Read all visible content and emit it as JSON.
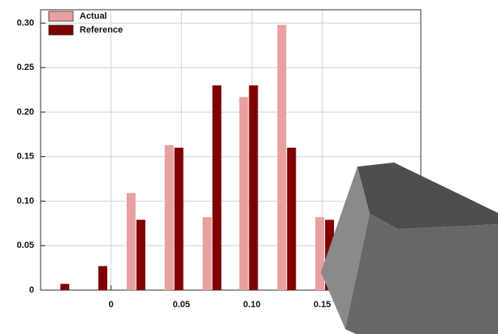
{
  "chart_data": {
    "type": "bar",
    "x": [
      -0.036,
      -0.009,
      0.018,
      0.045,
      0.072,
      0.098,
      0.125,
      0.152
    ],
    "series": [
      {
        "name": "Actual",
        "color": "#e8a0a0",
        "values": [
          0,
          0,
          0.109,
          0.163,
          0.082,
          0.217,
          0.298,
          0.082
        ]
      },
      {
        "name": "Reference",
        "color": "#7f0000",
        "values": [
          0.007,
          0.027,
          0.079,
          0.16,
          0.23,
          0.23,
          0.16,
          0.079
        ]
      }
    ],
    "xlim": [
      -0.05,
      0.22
    ],
    "xticks": [
      0,
      0.05,
      {
        "value": 0.1,
        "label": "0.10"
      },
      0.15
    ],
    "ylim": [
      0,
      0.315
    ],
    "yticks": [
      0,
      0.05,
      {
        "value": 0.1,
        "label": "0.10"
      },
      0.15,
      {
        "value": 0.2,
        "label": "0.20"
      },
      0.25,
      {
        "value": 0.3,
        "label": "0.30"
      }
    ],
    "grid": true,
    "legend": "upper-left"
  }
}
